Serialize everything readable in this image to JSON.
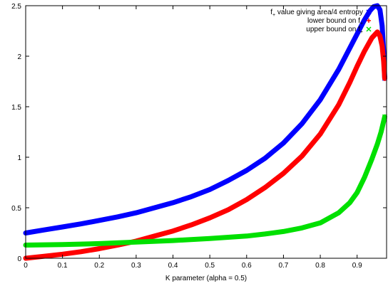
{
  "chart_data": {
    "type": "scatter",
    "title": "",
    "xlabel": "K parameter (alpha = 0.5)",
    "ylabel": "",
    "xlim": [
      0,
      0.98
    ],
    "ylim": [
      0,
      2.5
    ],
    "xticks": [
      "0",
      "0.1",
      "0.2",
      "0.3",
      "0.4",
      "0.5",
      "0.6",
      "0.7",
      "0.8",
      "0.9"
    ],
    "yticks": [
      "0",
      "0.5",
      "1",
      "1.5",
      "2",
      "2.5"
    ],
    "grid": false,
    "legend_position": "top-right",
    "series": [
      {
        "name": "f+ value giving area/4 entropy",
        "legend_main": "f",
        "legend_sub": "+",
        "legend_rest": " value giving area/4 entropy",
        "color": "#0000ff",
        "marker": "x",
        "points": [
          [
            0,
            0.25
          ],
          [
            0.05,
            0.28
          ],
          [
            0.1,
            0.31
          ],
          [
            0.15,
            0.34
          ],
          [
            0.2,
            0.375
          ],
          [
            0.25,
            0.41
          ],
          [
            0.3,
            0.45
          ],
          [
            0.35,
            0.5
          ],
          [
            0.4,
            0.55
          ],
          [
            0.45,
            0.61
          ],
          [
            0.5,
            0.68
          ],
          [
            0.55,
            0.77
          ],
          [
            0.6,
            0.87
          ],
          [
            0.65,
            0.99
          ],
          [
            0.7,
            1.14
          ],
          [
            0.75,
            1.33
          ],
          [
            0.8,
            1.57
          ],
          [
            0.85,
            1.87
          ],
          [
            0.88,
            2.08
          ],
          [
            0.9,
            2.22
          ],
          [
            0.92,
            2.36
          ],
          [
            0.935,
            2.45
          ],
          [
            0.945,
            2.49
          ],
          [
            0.955,
            2.5
          ],
          [
            0.962,
            2.46
          ],
          [
            0.968,
            2.3
          ],
          [
            0.972,
            2.05
          ],
          [
            0.975,
            1.78
          ]
        ]
      },
      {
        "name": "lower bound on f+",
        "legend_main": "lower bound on f",
        "legend_sub": "+",
        "legend_rest": "",
        "color": "#ff0000",
        "marker": "+",
        "points": [
          [
            0,
            0.0
          ],
          [
            0.05,
            0.02
          ],
          [
            0.1,
            0.04
          ],
          [
            0.15,
            0.065
          ],
          [
            0.2,
            0.095
          ],
          [
            0.25,
            0.13
          ],
          [
            0.3,
            0.17
          ],
          [
            0.35,
            0.22
          ],
          [
            0.4,
            0.27
          ],
          [
            0.45,
            0.33
          ],
          [
            0.5,
            0.4
          ],
          [
            0.55,
            0.48
          ],
          [
            0.6,
            0.58
          ],
          [
            0.65,
            0.7
          ],
          [
            0.7,
            0.84
          ],
          [
            0.75,
            1.01
          ],
          [
            0.8,
            1.23
          ],
          [
            0.85,
            1.52
          ],
          [
            0.88,
            1.74
          ],
          [
            0.9,
            1.9
          ],
          [
            0.92,
            2.05
          ],
          [
            0.94,
            2.18
          ],
          [
            0.955,
            2.24
          ],
          [
            0.962,
            2.2
          ],
          [
            0.968,
            2.1
          ],
          [
            0.972,
            1.95
          ],
          [
            0.975,
            1.78
          ]
        ]
      },
      {
        "name": "upper bound on f+",
        "legend_main": "upper bound on f",
        "legend_sub": "+",
        "legend_rest": "",
        "color": "#00e000",
        "marker": "x",
        "points": [
          [
            0,
            0.13
          ],
          [
            0.1,
            0.135
          ],
          [
            0.2,
            0.145
          ],
          [
            0.3,
            0.16
          ],
          [
            0.4,
            0.175
          ],
          [
            0.5,
            0.195
          ],
          [
            0.6,
            0.22
          ],
          [
            0.65,
            0.24
          ],
          [
            0.7,
            0.265
          ],
          [
            0.75,
            0.3
          ],
          [
            0.8,
            0.35
          ],
          [
            0.85,
            0.45
          ],
          [
            0.88,
            0.55
          ],
          [
            0.9,
            0.65
          ],
          [
            0.92,
            0.8
          ],
          [
            0.94,
            0.98
          ],
          [
            0.955,
            1.13
          ],
          [
            0.965,
            1.25
          ],
          [
            0.975,
            1.4
          ]
        ]
      }
    ]
  }
}
